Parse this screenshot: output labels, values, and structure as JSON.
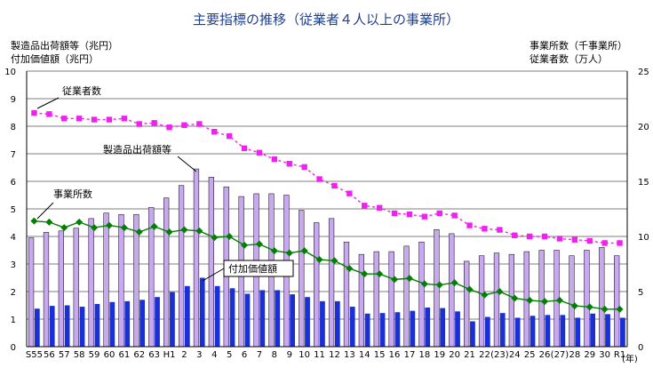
{
  "chart_data": {
    "type": "bar+line",
    "title": "主要指標の推移（従業者４人以上の事業所）",
    "left_axis_labels": [
      "製造品出荷額等（兆円）",
      "付加価値額（兆円）"
    ],
    "right_axis_labels": [
      "事業所数（千事業所）",
      "従業者数（万人）"
    ],
    "x_unit": "(年)",
    "left_ylim": [
      0,
      10
    ],
    "left_ticks": [
      "0",
      "1",
      "2",
      "3",
      "4",
      "5",
      "6",
      "7",
      "8",
      "9",
      "10"
    ],
    "right_ylim": [
      0,
      25
    ],
    "right_ticks": [
      "0",
      "5",
      "10",
      "15",
      "20",
      "25"
    ],
    "categories": [
      "S55",
      "56",
      "57",
      "58",
      "59",
      "60",
      "61",
      "62",
      "63",
      "H1",
      "2",
      "3",
      "4",
      "5",
      "6",
      "7",
      "8",
      "9",
      "10",
      "11",
      "12",
      "13",
      "14",
      "15",
      "16",
      "17",
      "18",
      "19",
      "20",
      "21",
      "22",
      "(23)",
      "24",
      "25",
      "26",
      "(27)",
      "28",
      "29",
      "30",
      "R1"
    ],
    "series": [
      {
        "name": "製造品出荷額等",
        "axis": "left",
        "type": "bar",
        "color": "#c8a8ee",
        "values": [
          3.95,
          4.15,
          4.2,
          4.3,
          4.65,
          4.85,
          4.8,
          4.8,
          5.05,
          5.4,
          5.85,
          6.45,
          6.15,
          5.8,
          5.45,
          5.55,
          5.55,
          5.5,
          4.95,
          4.5,
          4.65,
          3.8,
          3.35,
          3.45,
          3.45,
          3.65,
          3.8,
          4.25,
          4.1,
          3.1,
          3.3,
          3.4,
          3.35,
          3.45,
          3.5,
          3.5,
          3.3,
          3.5,
          3.6,
          3.3
        ]
      },
      {
        "name": "付加価値額",
        "axis": "left",
        "type": "bar",
        "color": "#1a2fd6",
        "values": [
          1.38,
          1.48,
          1.5,
          1.45,
          1.55,
          1.62,
          1.65,
          1.7,
          1.8,
          1.98,
          2.2,
          2.5,
          2.2,
          2.12,
          1.92,
          2.05,
          2.05,
          1.9,
          1.8,
          1.65,
          1.65,
          1.45,
          1.2,
          1.22,
          1.25,
          1.3,
          1.42,
          1.4,
          1.28,
          0.92,
          1.08,
          1.22,
          1.05,
          1.12,
          1.15,
          1.15,
          1.05,
          1.2,
          1.18,
          1.05
        ]
      },
      {
        "name": "従業者数",
        "axis": "right",
        "type": "line",
        "color": "#ee22ee",
        "dashed": true,
        "marker": "square",
        "values": [
          21.2,
          21.1,
          20.7,
          20.7,
          20.6,
          20.6,
          20.7,
          20.2,
          20.3,
          19.9,
          20.1,
          20.2,
          19.5,
          19.1,
          18.0,
          17.6,
          17.0,
          16.6,
          16.3,
          15.2,
          14.6,
          13.9,
          12.8,
          12.6,
          12.1,
          12.0,
          11.8,
          12.1,
          11.9,
          11.0,
          10.7,
          10.6,
          10.1,
          10.0,
          10.0,
          9.8,
          9.7,
          9.6,
          9.4,
          9.4
        ]
      },
      {
        "name": "事業所数",
        "axis": "right",
        "type": "line",
        "color": "#008000",
        "dashed": false,
        "marker": "diamond",
        "values": [
          11.4,
          11.3,
          10.8,
          11.3,
          10.8,
          11.0,
          10.8,
          10.4,
          10.9,
          10.4,
          10.6,
          10.5,
          9.9,
          10.0,
          9.2,
          9.3,
          8.7,
          8.5,
          8.7,
          7.9,
          7.8,
          7.1,
          6.6,
          6.6,
          6.1,
          6.2,
          5.7,
          5.6,
          5.8,
          5.2,
          4.7,
          5.0,
          4.4,
          4.2,
          4.1,
          4.2,
          3.7,
          3.6,
          3.4,
          3.4
        ]
      }
    ],
    "labels": {
      "shipments": "製造品出荷額等",
      "value_added": "付加価値額",
      "employees": "従業者数",
      "establishments": "事業所数"
    }
  }
}
